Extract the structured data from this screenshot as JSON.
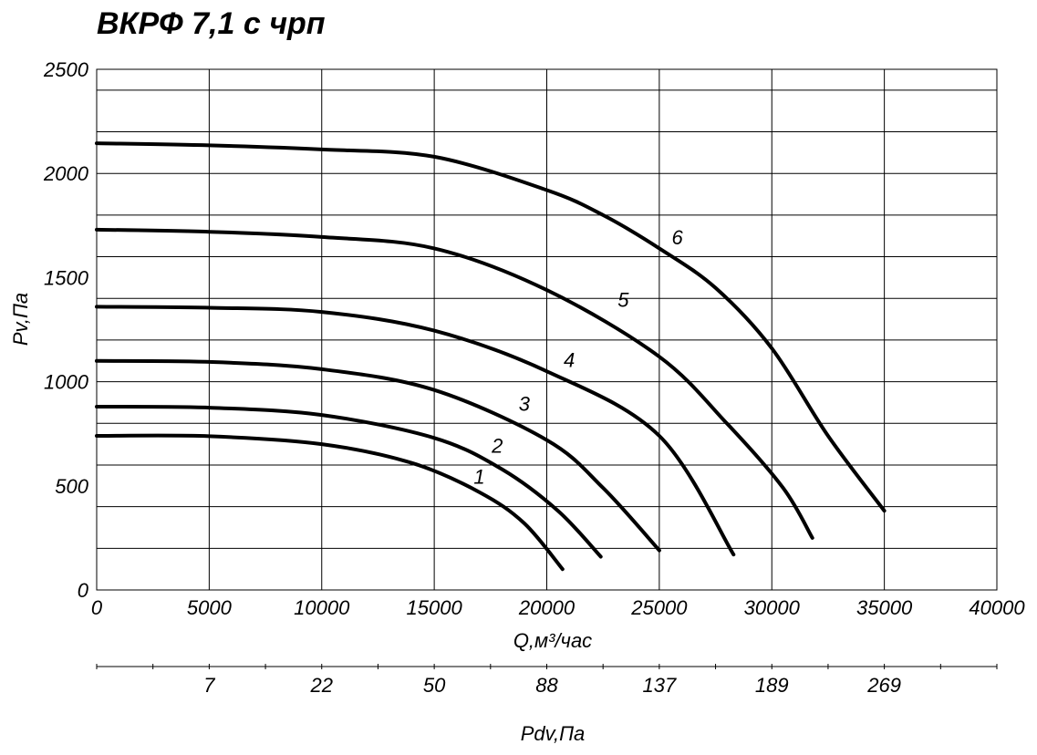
{
  "chart_data": {
    "type": "line",
    "title": "ВКРФ 7,1 с чрп",
    "xlabel": "Q,м³/час",
    "ylabel": "Pv,Па",
    "xlim": [
      0,
      40000
    ],
    "ylim": [
      0,
      2500
    ],
    "x_ticks": [
      "0",
      "5000",
      "10000",
      "15000",
      "20000",
      "25000",
      "30000",
      "35000",
      "40000"
    ],
    "y_ticks": [
      "0",
      "500",
      "1000",
      "1500",
      "2000",
      "2500"
    ],
    "grid": true,
    "secondary_axis": {
      "label": "Pdv,Па",
      "ticks": [
        {
          "label": "7",
          "q": 5000
        },
        {
          "label": "22",
          "q": 10000
        },
        {
          "label": "50",
          "q": 15000
        },
        {
          "label": "88",
          "q": 20000
        },
        {
          "label": "137",
          "q": 25000
        },
        {
          "label": "189",
          "q": 30000
        },
        {
          "label": "269",
          "q": 35000
        }
      ]
    },
    "series": [
      {
        "name": "1",
        "label_at": [
          17000,
          510
        ],
        "points": [
          [
            0,
            740
          ],
          [
            5000,
            738
          ],
          [
            10000,
            700
          ],
          [
            14000,
            610
          ],
          [
            17000,
            470
          ],
          [
            19000,
            320
          ],
          [
            20700,
            100
          ]
        ]
      },
      {
        "name": "2",
        "label_at": [
          17800,
          660
        ],
        "points": [
          [
            0,
            880
          ],
          [
            5000,
            875
          ],
          [
            10000,
            840
          ],
          [
            15000,
            730
          ],
          [
            18000,
            580
          ],
          [
            20500,
            380
          ],
          [
            22400,
            160
          ]
        ]
      },
      {
        "name": "3",
        "label_at": [
          19000,
          860
        ],
        "points": [
          [
            0,
            1100
          ],
          [
            5000,
            1095
          ],
          [
            10000,
            1060
          ],
          [
            15000,
            960
          ],
          [
            20000,
            720
          ],
          [
            22500,
            490
          ],
          [
            25000,
            190
          ]
        ]
      },
      {
        "name": "4",
        "label_at": [
          21000,
          1070
        ],
        "points": [
          [
            0,
            1360
          ],
          [
            5000,
            1355
          ],
          [
            10000,
            1335
          ],
          [
            15000,
            1245
          ],
          [
            20000,
            1050
          ],
          [
            25000,
            740
          ],
          [
            28300,
            170
          ]
        ]
      },
      {
        "name": "5",
        "label_at": [
          23400,
          1360
        ],
        "points": [
          [
            0,
            1730
          ],
          [
            5000,
            1720
          ],
          [
            10000,
            1695
          ],
          [
            15000,
            1640
          ],
          [
            20000,
            1440
          ],
          [
            25000,
            1120
          ],
          [
            28000,
            800
          ],
          [
            30500,
            490
          ],
          [
            31800,
            250
          ]
        ]
      },
      {
        "name": "6",
        "label_at": [
          25800,
          1660
        ],
        "points": [
          [
            0,
            2145
          ],
          [
            5000,
            2135
          ],
          [
            10000,
            2115
          ],
          [
            15000,
            2080
          ],
          [
            20000,
            1920
          ],
          [
            22500,
            1800
          ],
          [
            25000,
            1640
          ],
          [
            27500,
            1450
          ],
          [
            30000,
            1160
          ],
          [
            32500,
            740
          ],
          [
            35000,
            380
          ]
        ]
      }
    ]
  }
}
